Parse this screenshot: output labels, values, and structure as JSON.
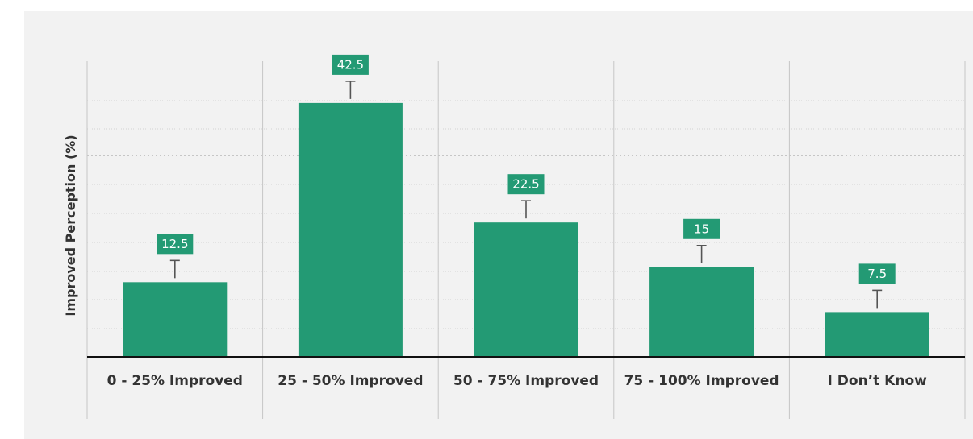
{
  "chart_data": {
    "type": "bar",
    "title": "",
    "xlabel": "",
    "ylabel": "Improved Perception  (%)",
    "categories": [
      "0 - 25% Improved",
      "25 - 50% Improved",
      "50 - 75% Improved",
      "75 - 100% Improved",
      "I Don’t Know"
    ],
    "values": [
      12.5,
      42.5,
      22.5,
      15,
      7.5
    ],
    "value_labels": [
      "12.5",
      "42.5",
      "22.5",
      "15",
      "7.5"
    ],
    "ylim": [
      0,
      49.5
    ],
    "error_bars": true,
    "grid": true,
    "legend": "none",
    "colors": {
      "bar": "#239a74",
      "label_box": "#239a74",
      "label_text": "#ffffff",
      "background": "#f2f2f2",
      "axis": "#111111"
    }
  }
}
